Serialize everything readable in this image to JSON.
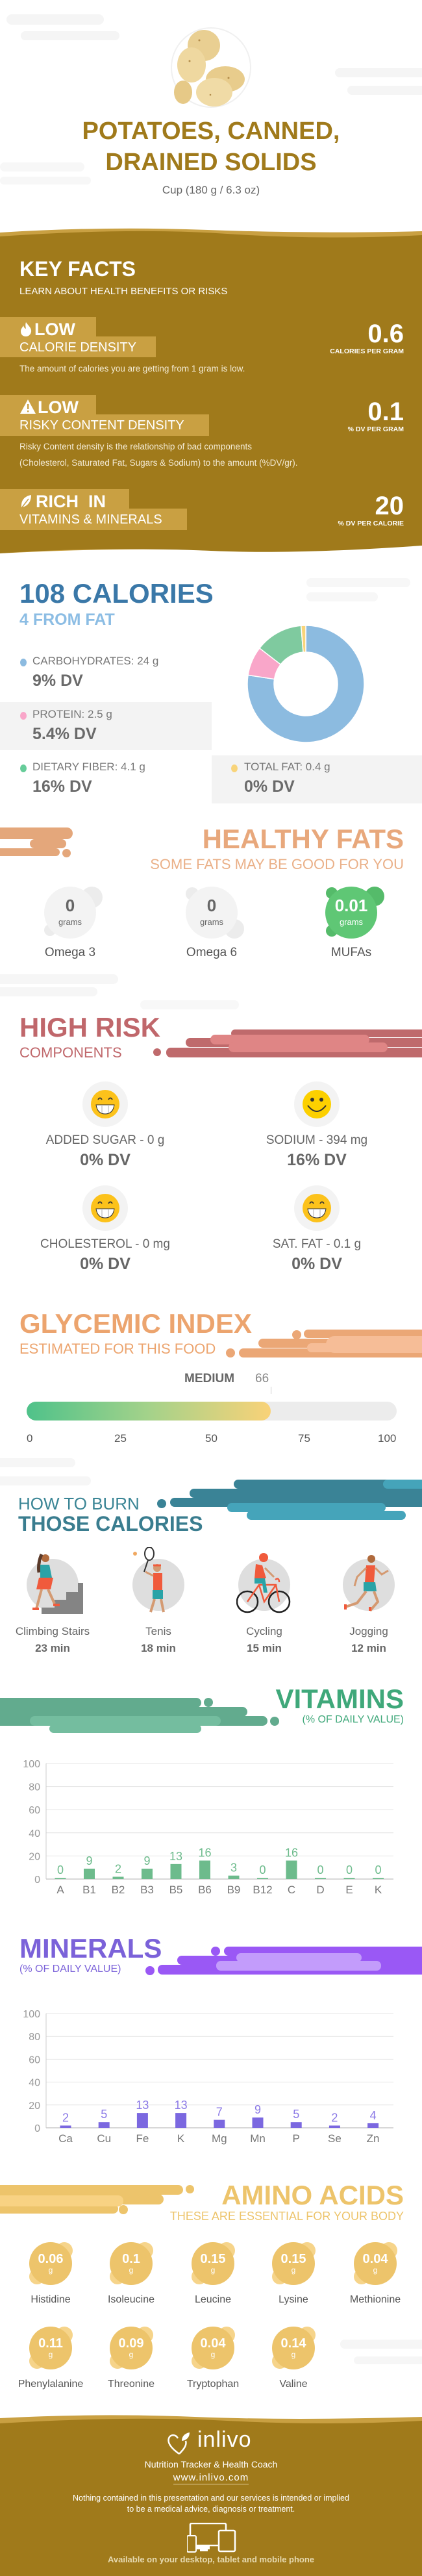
{
  "header": {
    "title_line1": "POTATOES, CANNED,",
    "title_line2": "DRAINED SOLIDS",
    "serving": "Cup (180 g / 6.3 oz)",
    "image": "potatoes-photo"
  },
  "key_facts": {
    "title": "KEY FACTS",
    "subtitle": "LEARN ABOUT HEALTH BENEFITS OR RISKS",
    "items": [
      {
        "icon": "flame-icon",
        "level": "LOW",
        "category": "CALORIE DENSITY",
        "value": "0.6",
        "unit": "CALORIES PER GRAM",
        "description": "The amount of calories you are getting from 1 gram is low."
      },
      {
        "icon": "warning-icon",
        "level": "LOW",
        "category": "RISKY CONTENT DENSITY",
        "value": "0.1",
        "unit": "% DV PER GRAM",
        "description_line1": "Risky Content density is the relationship of bad components",
        "description_line2": "(Cholesterol, Saturated Fat, Sugars & Sodium) to the amount (%DV/gr)."
      },
      {
        "icon": "leaf-icon",
        "level": "RICH  IN",
        "category": "VITAMINS & MINERALS",
        "value": "20",
        "unit": "% DV PER CALORIE"
      }
    ]
  },
  "calories": {
    "title": "108 CALORIES",
    "subtitle": "4 FROM FAT",
    "macros": [
      {
        "label": "CARBOHYDRATES: 24 g",
        "dv": "9% DV",
        "color": "#8cbbe0"
      },
      {
        "label": "PROTEIN: 2.5 g",
        "dv": "5.4% DV",
        "color": "#f9a6c9"
      },
      {
        "label": "DIETARY FIBER: 4.1 g",
        "dv": "16% DV",
        "color": "#66cc99"
      },
      {
        "label": "TOTAL FAT: 0.4 g",
        "dv": "0% DV",
        "color": "#f8d47a"
      }
    ]
  },
  "healthy_fats": {
    "title": "HEALTHY FATS",
    "subtitle": "SOME FATS MAY BE GOOD FOR YOU",
    "unit": "grams",
    "items": [
      {
        "name": "Omega 3",
        "value": "0",
        "highlight": false
      },
      {
        "name": "Omega 6",
        "value": "0",
        "highlight": false
      },
      {
        "name": "MUFAs",
        "value": "0.01",
        "highlight": true
      }
    ]
  },
  "high_risk": {
    "title": "HIGH RISK",
    "subtitle": "COMPONENTS",
    "items": [
      {
        "label": "ADDED SUGAR - 0 g",
        "dv": "0% DV",
        "icon": "grin-icon"
      },
      {
        "label": "SODIUM - 394 mg",
        "dv": "16% DV",
        "icon": "smile-icon"
      },
      {
        "label": "CHOLESTEROL - 0 mg",
        "dv": "0% DV",
        "icon": "grin-icon"
      },
      {
        "label": "SAT. FAT - 0.1 g",
        "dv": "0% DV",
        "icon": "grin-icon"
      }
    ]
  },
  "glycemic": {
    "title": "GLYCEMIC INDEX",
    "subtitle": "ESTIMATED FOR THIS FOOD",
    "level": "MEDIUM",
    "value": 66,
    "value_text": "66",
    "scale": [
      "0",
      "25",
      "50",
      "75",
      "100"
    ]
  },
  "burn": {
    "title_line1": "HOW TO BURN",
    "title_line2": "THOSE CALORIES",
    "activities": [
      {
        "name": "Climbing Stairs",
        "time": "23 min",
        "icon": "stairs-climber-icon"
      },
      {
        "name": "Tenis",
        "time": "18 min",
        "icon": "tennis-player-icon"
      },
      {
        "name": "Cycling",
        "time": "15 min",
        "icon": "cyclist-icon"
      },
      {
        "name": "Jogging",
        "time": "12 min",
        "icon": "jogger-icon"
      }
    ]
  },
  "vitamins": {
    "title": "VITAMINS",
    "subtitle": "(% OF DAILY VALUE)"
  },
  "minerals": {
    "title": "MINERALS",
    "subtitle": "(% OF DAILY VALUE)"
  },
  "chart_data": [
    {
      "type": "bar",
      "categories": [
        "A",
        "B1",
        "B2",
        "B3",
        "B5",
        "B6",
        "B9",
        "B12",
        "C",
        "D",
        "E",
        "K"
      ],
      "values": [
        0,
        9,
        2,
        9,
        13,
        16,
        3,
        0,
        16,
        0,
        0,
        0
      ],
      "yticks": [
        "0",
        "20",
        "40",
        "60",
        "80",
        "100"
      ],
      "ylim": [
        0,
        100
      ],
      "grid": true,
      "color": "#6dbb8c",
      "label_color": "#6dbb8c"
    },
    {
      "type": "bar",
      "categories": [
        "Ca",
        "Cu",
        "Fe",
        "K",
        "Mg",
        "Mn",
        "P",
        "Se",
        "Zn"
      ],
      "values": [
        2,
        5,
        13,
        13,
        7,
        9,
        5,
        2,
        4
      ],
      "yticks": [
        "0",
        "20",
        "40",
        "60",
        "80",
        "100"
      ],
      "ylim": [
        0,
        100
      ],
      "grid": true,
      "color": "#7b68e0",
      "label_color": "#8a78e6"
    },
    {
      "type": "pie",
      "donut": true,
      "values": [
        24,
        2.5,
        4.1,
        0.4
      ],
      "colors": [
        "#8cbbe0",
        "#f9a6c9",
        "#7fca9f",
        "#f8d47a"
      ]
    }
  ],
  "amino_acids": {
    "title": "AMINO ACIDS",
    "subtitle": "THESE ARE ESSENTIAL FOR YOUR BODY",
    "unit": "g",
    "items": [
      {
        "name": "Histidine",
        "value": "0.06"
      },
      {
        "name": "Isoleucine",
        "value": "0.1"
      },
      {
        "name": "Leucine",
        "value": "0.15"
      },
      {
        "name": "Lysine",
        "value": "0.15"
      },
      {
        "name": "Methionine",
        "value": "0.04"
      },
      {
        "name": "Phenylalanine",
        "value": "0.11"
      },
      {
        "name": "Threonine",
        "value": "0.09"
      },
      {
        "name": "Tryptophan",
        "value": "0.04"
      },
      {
        "name": "Valine",
        "value": "0.14"
      }
    ]
  },
  "footer": {
    "brand": "inlivo",
    "tagline": "Nutrition Tracker & Health Coach",
    "url": "www.inlivo.com",
    "disclaimer_line1": "Nothing contained in this presentation and our services is intended or implied",
    "disclaimer_line2": "to be a medical advice, diagnosis or treatment.",
    "availability": "Available on your desktop, tablet and mobile phone"
  },
  "colors": {
    "brand": "#a07a1b",
    "calories": "#3a78a8",
    "healthy_fats": "#e8a87c",
    "high_risk": "#c0676b",
    "glycemic": "#eca46e",
    "burn": "#3a7d8f",
    "vitamins": "#3fa87a",
    "minerals": "#7b62d9",
    "amino": "#edc46b"
  }
}
